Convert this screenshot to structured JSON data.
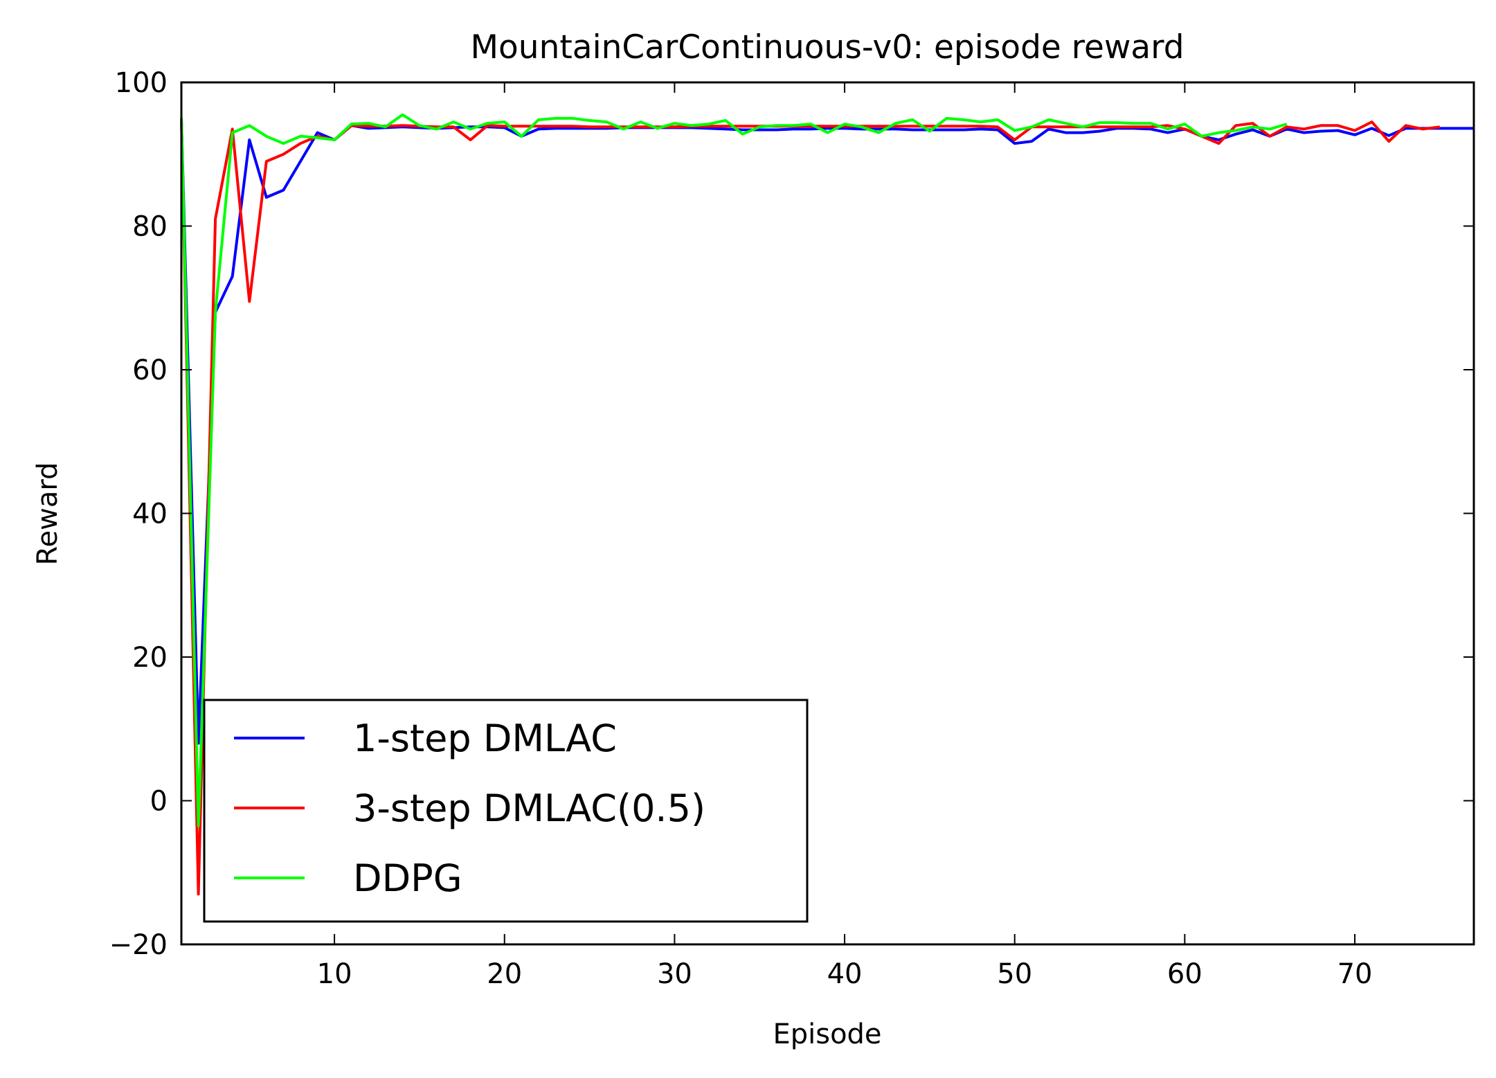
{
  "chart_data": {
    "type": "line",
    "title": "MountainCarContinuous-v0: episode reward",
    "xlabel": "Episode",
    "ylabel": "Reward",
    "xlim": [
      1,
      77
    ],
    "ylim": [
      -20,
      100
    ],
    "xticks": [
      10,
      20,
      30,
      40,
      50,
      60,
      70
    ],
    "yticks": [
      -20,
      0,
      20,
      40,
      60,
      80,
      100
    ],
    "ytick_labels": [
      "−20",
      "0",
      "20",
      "40",
      "60",
      "80",
      "100"
    ],
    "grid": false,
    "legend_position": "lower-left",
    "series": [
      {
        "name": "1-step DMLAC",
        "color": "#0000ff",
        "x": [
          1,
          2,
          3,
          4,
          5,
          6,
          7,
          8,
          9,
          10,
          11,
          12,
          13,
          14,
          15,
          16,
          17,
          18,
          19,
          20,
          21,
          22,
          23,
          24,
          25,
          26,
          27,
          28,
          29,
          30,
          31,
          32,
          33,
          34,
          35,
          36,
          37,
          38,
          39,
          40,
          41,
          42,
          43,
          44,
          45,
          46,
          47,
          48,
          49,
          50,
          51,
          52,
          53,
          54,
          55,
          56,
          57,
          58,
          59,
          60,
          61,
          62,
          63,
          64,
          65,
          66,
          67,
          68,
          69,
          70,
          71,
          72,
          73,
          74,
          75,
          76,
          77
        ],
        "y": [
          95,
          8,
          68,
          73,
          92,
          84,
          85,
          89,
          93,
          92,
          94,
          93.6,
          93.7,
          93.8,
          93.7,
          93.6,
          93.7,
          93.8,
          93.8,
          93.7,
          92.5,
          93.5,
          93.6,
          93.6,
          93.6,
          93.6,
          93.7,
          93.7,
          93.7,
          93.7,
          93.7,
          93.6,
          93.5,
          93.4,
          93.4,
          93.4,
          93.5,
          93.5,
          93.6,
          93.6,
          93.5,
          93.5,
          93.5,
          93.4,
          93.4,
          93.4,
          93.4,
          93.5,
          93.4,
          91.5,
          91.8,
          93.5,
          93,
          93,
          93.2,
          93.6,
          93.6,
          93.5,
          93,
          93.5,
          92.5,
          92,
          92.8,
          93.4,
          92.5,
          93.5,
          93,
          93.2,
          93.3,
          92.7,
          93.6,
          92.6,
          93.6,
          93.6,
          93.6,
          93.6,
          93.6
        ]
      },
      {
        "name": "3-step DMLAC(0.5)",
        "color": "#ff0000",
        "x": [
          1,
          2,
          3,
          4,
          5,
          6,
          7,
          8,
          9,
          10,
          11,
          12,
          13,
          14,
          15,
          16,
          17,
          18,
          19,
          20,
          21,
          22,
          23,
          24,
          25,
          26,
          27,
          28,
          29,
          30,
          31,
          32,
          33,
          34,
          35,
          36,
          37,
          38,
          39,
          40,
          41,
          42,
          43,
          44,
          45,
          46,
          47,
          48,
          49,
          50,
          51,
          52,
          53,
          54,
          55,
          56,
          57,
          58,
          59,
          60,
          61,
          62,
          63,
          64,
          65,
          66,
          67,
          68,
          69,
          70,
          71,
          72,
          73,
          74,
          75
        ],
        "y": [
          95,
          -13,
          81,
          93.5,
          69.5,
          89,
          90,
          91.5,
          92.5,
          92,
          94,
          93.9,
          93.9,
          94,
          93.9,
          93.8,
          93.8,
          92,
          94,
          93.9,
          93.9,
          93.9,
          93.9,
          93.9,
          93.8,
          93.8,
          93.8,
          93.8,
          93.8,
          93.8,
          93.9,
          93.9,
          93.9,
          93.9,
          93.9,
          93.9,
          93.9,
          93.9,
          93.9,
          93.9,
          93.9,
          93.9,
          93.9,
          93.9,
          93.9,
          93.9,
          93.9,
          93.9,
          93.8,
          92,
          93.8,
          93.8,
          93.8,
          93.8,
          93.8,
          93.8,
          93.8,
          93.8,
          94,
          93.5,
          92.5,
          91.5,
          94,
          94.3,
          92.5,
          93.8,
          93.5,
          94,
          94,
          93.3,
          94.5,
          91.8,
          94,
          93.5,
          93.8
        ]
      },
      {
        "name": "DDPG",
        "color": "#00ff00",
        "x": [
          1,
          2,
          3,
          4,
          5,
          6,
          7,
          8,
          9,
          10,
          11,
          12,
          13,
          14,
          15,
          16,
          17,
          18,
          19,
          20,
          21,
          22,
          23,
          24,
          25,
          26,
          27,
          28,
          29,
          30,
          31,
          32,
          33,
          34,
          35,
          36,
          37,
          38,
          39,
          40,
          41,
          42,
          43,
          44,
          45,
          46,
          47,
          48,
          49,
          50,
          51,
          52,
          53,
          54,
          55,
          56,
          57,
          58,
          59,
          60,
          61,
          62,
          63,
          64,
          65,
          66
        ],
        "y": [
          95,
          -3.5,
          68,
          93,
          94,
          92.5,
          91.5,
          92.5,
          92.3,
          92,
          94.2,
          94.3,
          93.8,
          95.5,
          94,
          93.5,
          94.5,
          93.5,
          94.3,
          94.5,
          92.5,
          94.8,
          95,
          95,
          94.7,
          94.5,
          93.5,
          94.5,
          93.6,
          94.3,
          94,
          94.2,
          94.7,
          92.8,
          93.8,
          94,
          94,
          94.2,
          93,
          94.2,
          93.8,
          93,
          94.3,
          94.8,
          93.2,
          95,
          94.8,
          94.5,
          94.8,
          93.3,
          93.8,
          94.8,
          94.3,
          93.8,
          94.4,
          94.4,
          94.3,
          94.3,
          93.5,
          94.2,
          92.5,
          93,
          93.3,
          93.8,
          93.5,
          94.2
        ]
      }
    ]
  }
}
